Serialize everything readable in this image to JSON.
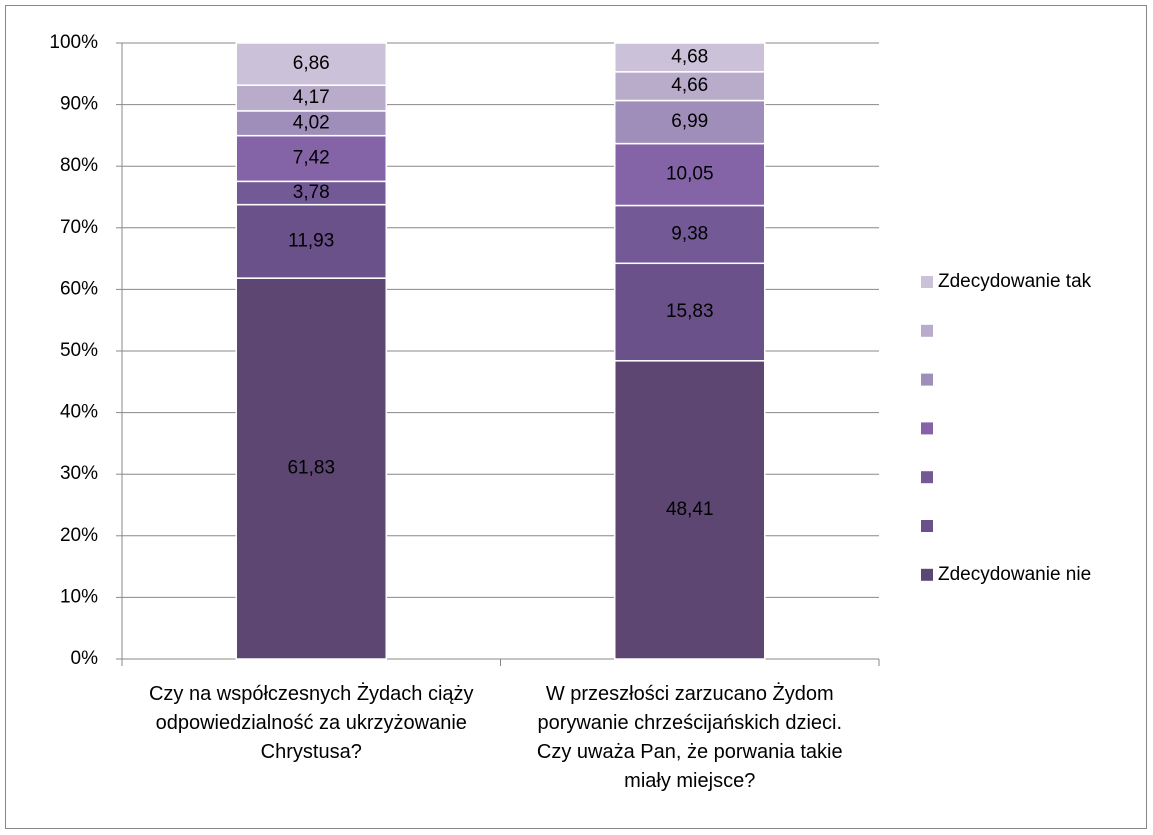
{
  "chart_data": {
    "type": "stacked_bar_100",
    "categories": [
      "Czy na współczesnych Żydach ciąży odpowiedzialność za ukrzyżowanie Chrystusa?",
      "W przeszłości zarzucano Żydom porywanie chrześcijańskich dzieci. Czy uważa Pan, że porwania takie miały miejsce?"
    ],
    "series": [
      {
        "name": "Zdecydowanie nie",
        "color": "#5d4672",
        "values": [
          61.83,
          48.41
        ],
        "value_labels": [
          "61,83",
          "48,41"
        ]
      },
      {
        "name": null,
        "color": "#6b5189",
        "values": [
          11.93,
          15.83
        ],
        "value_labels": [
          "11,93",
          "15,83"
        ]
      },
      {
        "name": null,
        "color": "#735a97",
        "values": [
          3.78,
          9.38
        ],
        "value_labels": [
          "3,78",
          "9,38"
        ]
      },
      {
        "name": null,
        "color": "#8464a7",
        "values": [
          7.42,
          10.05
        ],
        "value_labels": [
          "7,42",
          "10,05"
        ]
      },
      {
        "name": null,
        "color": "#a08eba",
        "values": [
          4.02,
          6.99
        ],
        "value_labels": [
          "4,02",
          "6,99"
        ]
      },
      {
        "name": null,
        "color": "#b8acca",
        "values": [
          4.17,
          4.66
        ],
        "value_labels": [
          "4,17",
          "4,66"
        ]
      },
      {
        "name": "Zdecydowanie tak",
        "color": "#cbc2da",
        "values": [
          6.86,
          4.68
        ],
        "value_labels": [
          "6,86",
          "4,68"
        ]
      }
    ],
    "ylim": [
      0,
      100
    ],
    "yticks": [
      {
        "value": 0,
        "label": "0%"
      },
      {
        "value": 10,
        "label": "10%"
      },
      {
        "value": 20,
        "label": "20%"
      },
      {
        "value": 30,
        "label": "30%"
      },
      {
        "value": 40,
        "label": "40%"
      },
      {
        "value": 50,
        "label": "50%"
      },
      {
        "value": 60,
        "label": "60%"
      },
      {
        "value": 70,
        "label": "70%"
      },
      {
        "value": 80,
        "label": "80%"
      },
      {
        "value": 90,
        "label": "90%"
      },
      {
        "value": 100,
        "label": "100%"
      }
    ],
    "grid": true,
    "legend": "right"
  }
}
